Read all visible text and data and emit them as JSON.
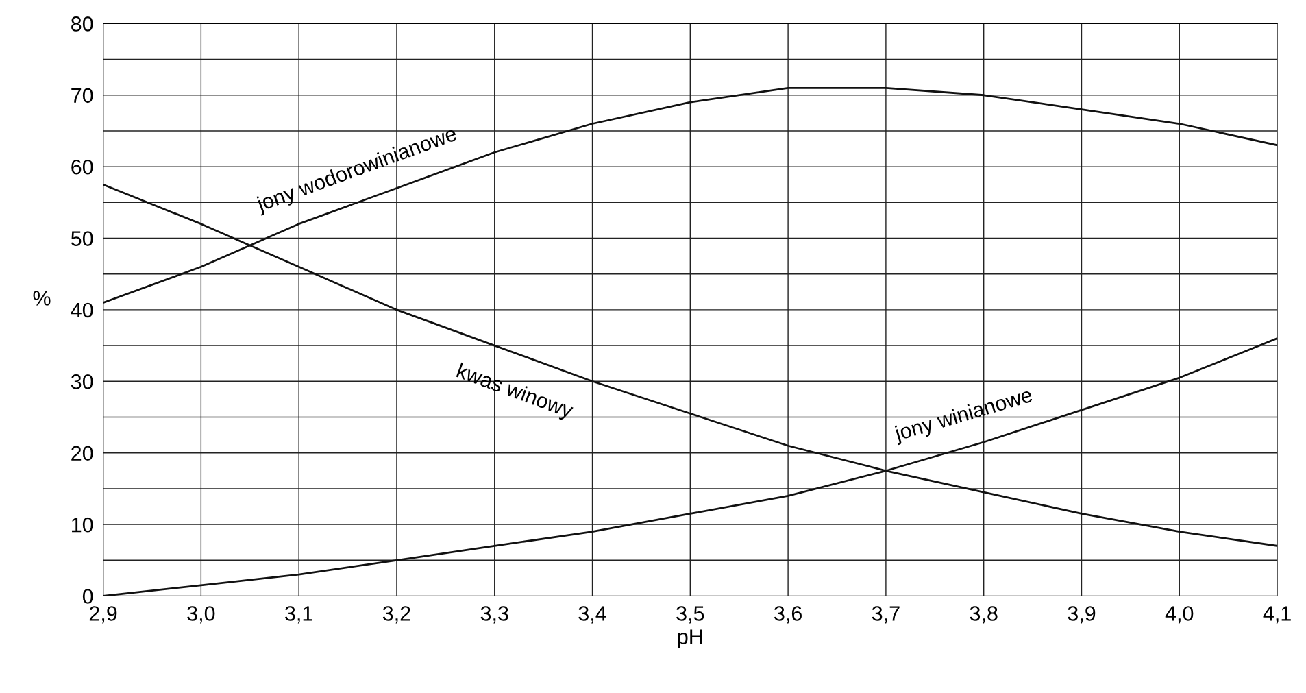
{
  "chart_data": {
    "type": "line",
    "xlabel": "pH",
    "ylabel": "%",
    "x": [
      2.9,
      3.0,
      3.1,
      3.2,
      3.3,
      3.4,
      3.5,
      3.6,
      3.7,
      3.8,
      3.9,
      4.0,
      4.1
    ],
    "series": [
      {
        "name": "jony wodorowinianowe",
        "color": "#111111",
        "values": [
          41,
          46,
          52,
          57,
          62,
          66,
          69,
          71,
          71,
          70,
          68,
          66,
          63
        ]
      },
      {
        "name": "kwas winowy",
        "color": "#111111",
        "values": [
          57.5,
          52,
          46,
          40,
          35,
          30,
          25.5,
          21,
          17.5,
          14.5,
          11.5,
          9,
          7
        ]
      },
      {
        "name": "jony winianowe",
        "color": "#111111",
        "values": [
          0,
          1.5,
          3,
          5,
          7,
          9,
          11.5,
          14,
          17.5,
          21.5,
          26,
          30.5,
          36
        ]
      }
    ],
    "xlim": [
      2.9,
      4.1
    ],
    "xticks": [
      {
        "value": 2.9,
        "label": "2,9"
      },
      {
        "value": 3.0,
        "label": "3,0"
      },
      {
        "value": 3.1,
        "label": "3,1"
      },
      {
        "value": 3.2,
        "label": "3,2"
      },
      {
        "value": 3.3,
        "label": "3,3"
      },
      {
        "value": 3.4,
        "label": "3,4"
      },
      {
        "value": 3.5,
        "label": "3,5"
      },
      {
        "value": 3.6,
        "label": "3,6"
      },
      {
        "value": 3.7,
        "label": "3,7"
      },
      {
        "value": 3.8,
        "label": "3,8"
      },
      {
        "value": 3.9,
        "label": "3,9"
      },
      {
        "value": 4.0,
        "label": "4,0"
      },
      {
        "value": 4.1,
        "label": "4,1"
      }
    ],
    "ylim": [
      0,
      80
    ],
    "yticks": [
      0,
      {
        "value": 5,
        "label": null
      },
      10,
      {
        "value": 15,
        "label": null
      },
      20,
      {
        "value": 25,
        "label": null
      },
      30,
      {
        "value": 35,
        "label": null
      },
      40,
      {
        "value": 45,
        "label": null
      },
      50,
      {
        "value": 55,
        "label": null
      },
      60,
      {
        "value": 65,
        "label": null
      },
      70,
      {
        "value": 75,
        "label": null
      },
      80
    ],
    "grid": true,
    "legend": false,
    "marker": "none",
    "line_style": "solid"
  }
}
